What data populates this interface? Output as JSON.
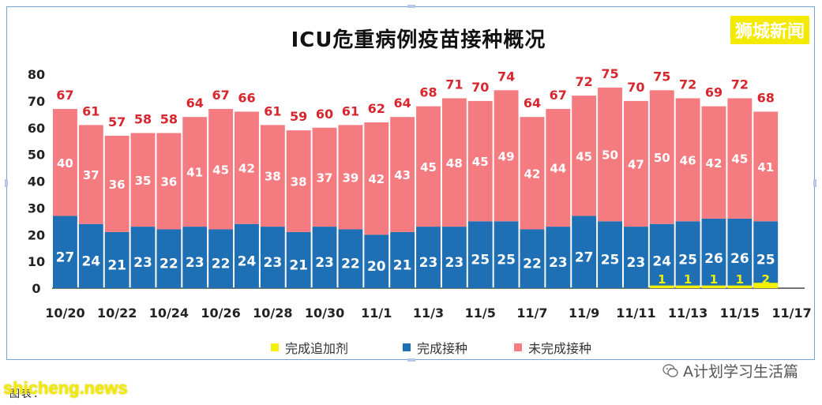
{
  "title": "ICU危重病例疫苗接种概况",
  "brand": "狮城新闻",
  "wechat": "A计划学习生活篇",
  "watermark": "shicheng.news",
  "footer_text": "图表：",
  "colors": {
    "booster": "#f2f200",
    "vaccinated": "#1f6fb5",
    "unvaccinated": "#f47b80",
    "total_label": "#d7262e",
    "axis": "#222222",
    "frame": "#7a9ed6"
  },
  "legend": [
    {
      "label": "完成追加剂",
      "color": "#f2f200"
    },
    {
      "label": "完成接种",
      "color": "#1f6fb5"
    },
    {
      "label": "未完成接种",
      "color": "#f47b80"
    }
  ],
  "chart_data": {
    "type": "bar",
    "stacked": true,
    "title": "ICU危重病例疫苗接种概况",
    "categories": [
      "10/20",
      "10/21",
      "10/22",
      "10/23",
      "10/24",
      "10/25",
      "10/26",
      "10/27",
      "10/28",
      "10/29",
      "10/30",
      "10/31",
      "11/1",
      "11/2",
      "11/3",
      "11/4",
      "11/5",
      "11/6",
      "11/7",
      "11/8",
      "11/9",
      "11/10",
      "11/11",
      "11/12",
      "11/13",
      "11/14",
      "11/15",
      "11/16",
      "11/17"
    ],
    "x_tick_labels": [
      "10/20",
      "10/22",
      "10/24",
      "10/26",
      "10/28",
      "10/30",
      "11/1",
      "11/3",
      "11/5",
      "11/7",
      "11/9",
      "11/11",
      "11/13",
      "11/15",
      "11/17"
    ],
    "series": [
      {
        "name": "完成追加剂",
        "values": [
          0,
          0,
          0,
          0,
          0,
          0,
          0,
          0,
          0,
          0,
          0,
          0,
          0,
          0,
          0,
          0,
          0,
          0,
          0,
          0,
          0,
          0,
          0,
          1,
          1,
          1,
          1,
          2,
          null
        ]
      },
      {
        "name": "完成接种",
        "values": [
          27,
          24,
          21,
          23,
          22,
          23,
          22,
          24,
          23,
          21,
          23,
          22,
          20,
          21,
          23,
          23,
          25,
          25,
          22,
          23,
          27,
          25,
          23,
          24,
          25,
          26,
          26,
          25,
          null
        ]
      },
      {
        "name": "未完成接种",
        "values": [
          40,
          37,
          36,
          35,
          36,
          41,
          45,
          42,
          38,
          38,
          37,
          39,
          42,
          43,
          45,
          48,
          45,
          49,
          42,
          44,
          45,
          50,
          47,
          50,
          46,
          42,
          45,
          41,
          null
        ]
      }
    ],
    "totals": [
      67,
      61,
      57,
      58,
      58,
      64,
      67,
      66,
      61,
      59,
      60,
      61,
      62,
      64,
      68,
      71,
      70,
      74,
      64,
      67,
      72,
      75,
      70,
      75,
      72,
      69,
      72,
      68,
      null
    ],
    "ylim": [
      0,
      80
    ],
    "yticks": [
      0,
      10,
      20,
      30,
      40,
      50,
      60,
      70,
      80
    ],
    "legend_position": "bottom",
    "grid": false
  }
}
